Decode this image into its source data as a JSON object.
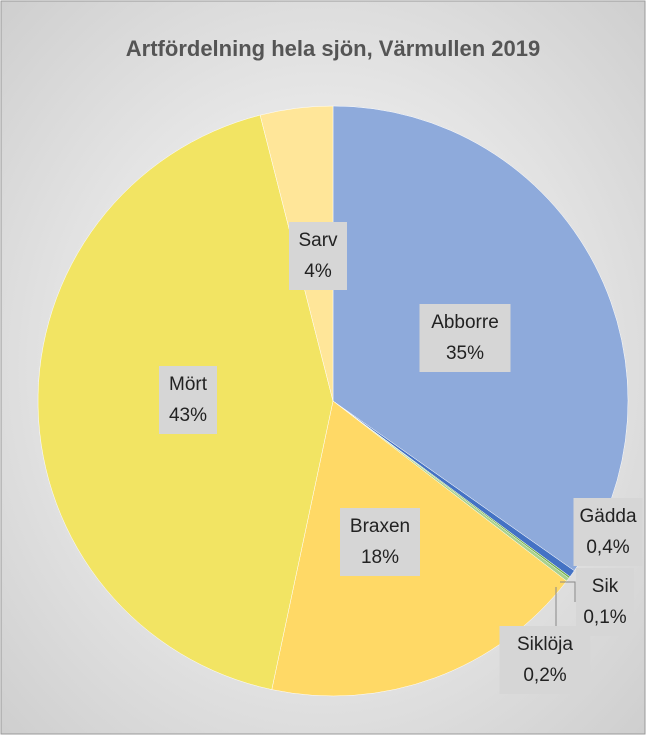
{
  "chart_data": {
    "type": "pie",
    "title": "Artfördelning hela sjön, Värmullen 2019",
    "categories": [
      "Abborre",
      "Gädda",
      "Sik",
      "Siklöja",
      "Braxen",
      "Mört",
      "Sarv"
    ],
    "values": [
      35,
      0.4,
      0.1,
      0.2,
      18,
      43,
      4
    ],
    "value_labels": [
      "35%",
      "0,4%",
      "0,1%",
      "0,2%",
      "18%",
      "43%",
      "4%"
    ],
    "colors": [
      "#8eaadb",
      "#4472c4",
      "#70ad47",
      "#a9d18e",
      "#ffd966",
      "#f2e463",
      "#ffe699"
    ]
  }
}
